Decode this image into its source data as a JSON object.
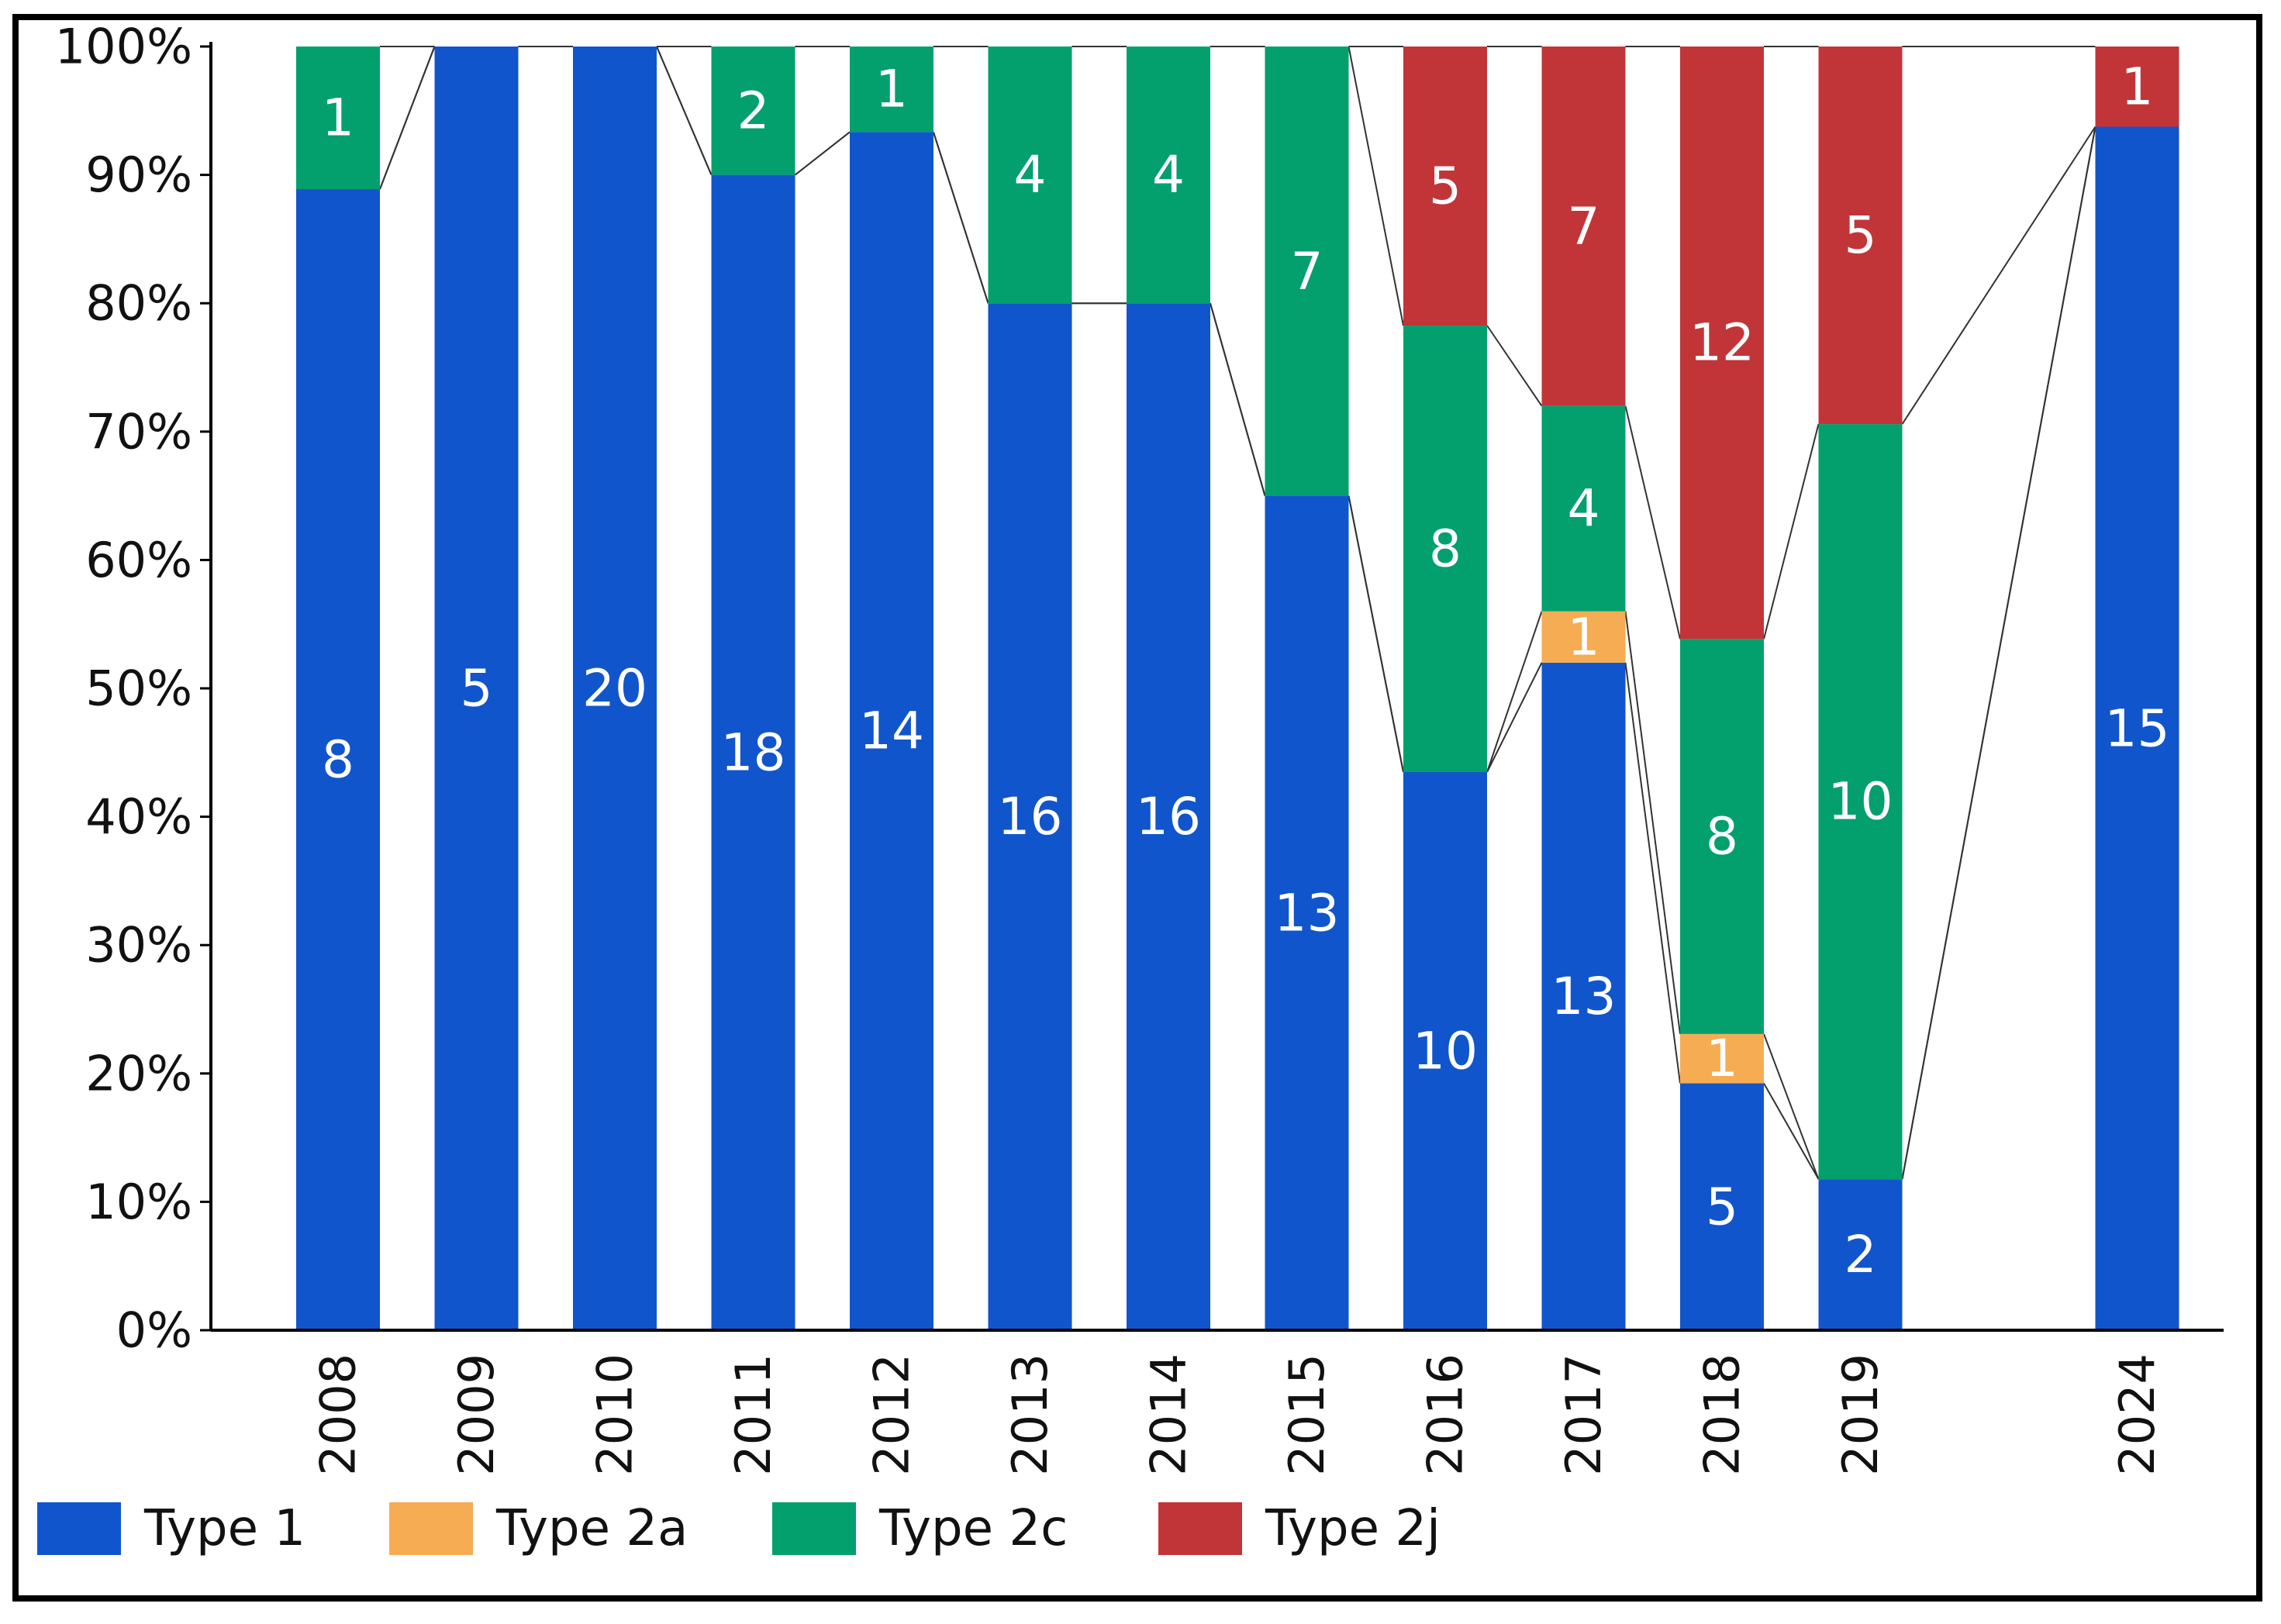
{
  "chart_data": {
    "type": "bar",
    "stacked": true,
    "normalized": true,
    "title": "",
    "xlabel": "",
    "ylabel": "",
    "ylim": [
      0,
      100
    ],
    "yticks": [
      "0%",
      "10%",
      "20%",
      "30%",
      "40%",
      "50%",
      "60%",
      "70%",
      "80%",
      "90%",
      "100%"
    ],
    "categories": [
      "2008",
      "2009",
      "2010",
      "2011",
      "2012",
      "2013",
      "2014",
      "2015",
      "2016",
      "2017",
      "2018",
      "2019",
      "2024"
    ],
    "category_slots": [
      0,
      1,
      2,
      3,
      4,
      5,
      6,
      7,
      8,
      9,
      10,
      11,
      13
    ],
    "series": [
      {
        "name": "Type 1",
        "color": "#1155cc",
        "values": [
          8,
          5,
          20,
          18,
          14,
          16,
          16,
          13,
          10,
          13,
          5,
          2,
          15
        ]
      },
      {
        "name": "Type 2a",
        "color": "#f6ac52",
        "values": [
          0,
          0,
          0,
          0,
          0,
          0,
          0,
          0,
          0,
          1,
          1,
          0,
          0
        ]
      },
      {
        "name": "Type 2c",
        "color": "#03a06e",
        "values": [
          1,
          0,
          0,
          2,
          1,
          4,
          4,
          7,
          8,
          4,
          8,
          10,
          0
        ]
      },
      {
        "name": "Type 2j",
        "color": "#c13538",
        "values": [
          0,
          0,
          0,
          0,
          0,
          0,
          0,
          0,
          5,
          7,
          12,
          5,
          1
        ]
      }
    ],
    "legend": {
      "position": "bottom",
      "items": [
        "Type 1",
        "Type 2a",
        "Type 2c",
        "Type 2j"
      ]
    },
    "grid": false,
    "connector_lines": true
  }
}
